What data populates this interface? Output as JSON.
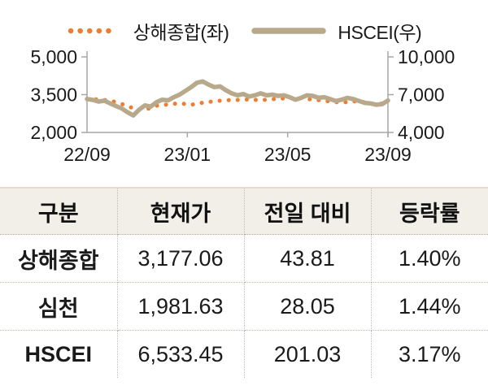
{
  "legend": [
    {
      "label": "상해종합(좌)",
      "marker": "dotted",
      "color": "#ED7D31"
    },
    {
      "label": "HSCEI(우)",
      "marker": "solid",
      "color": "#B9A98C"
    }
  ],
  "chart_data": {
    "type": "line",
    "title": "",
    "x_ticks": [
      "22/09",
      "23/01",
      "23/05",
      "23/09"
    ],
    "left_axis": {
      "label_side": "left",
      "ticks": [
        2000,
        3500,
        5000
      ],
      "tick_labels": [
        "2,000",
        "3,500",
        "5,000"
      ],
      "range": [
        2000,
        5000
      ]
    },
    "right_axis": {
      "label_side": "right",
      "ticks": [
        4000,
        7000,
        10000
      ],
      "tick_labels": [
        "4,000",
        "7,000",
        "10,000"
      ],
      "range": [
        4000,
        10000
      ]
    },
    "grid": false,
    "series": [
      {
        "name": "상해종합",
        "axis": "left",
        "style": "dotted",
        "color": "#ED7D31",
        "values": [
          3340,
          3310,
          3270,
          3130,
          2960,
          2890,
          3060,
          3110,
          3160,
          3100,
          3180,
          3240,
          3280,
          3290,
          3310,
          3280,
          3320,
          3350,
          3380,
          3330,
          3280,
          3230,
          3180,
          3240,
          3200,
          3120,
          3177
        ]
      },
      {
        "name": "HSCEI",
        "axis": "right",
        "style": "solid",
        "color": "#B9A98C",
        "values": [
          6650,
          6580,
          6450,
          6520,
          6300,
          6100,
          5900,
          5600,
          5350,
          5800,
          6150,
          6050,
          6400,
          6600,
          6550,
          6800,
          7000,
          7300,
          7600,
          7950,
          8050,
          7800,
          7600,
          7650,
          7350,
          7100,
          6950,
          7050,
          6850,
          6950,
          7100,
          6950,
          7000,
          6900,
          6950,
          6800,
          6600,
          6750,
          6950,
          6900,
          6750,
          6800,
          6650,
          6500,
          6600,
          6750,
          6650,
          6500,
          6350,
          6300,
          6200,
          6250,
          6533
        ]
      }
    ]
  },
  "table": {
    "columns": [
      "구분",
      "현재가",
      "전일 대비",
      "등락률"
    ],
    "rows": [
      [
        "상해종합",
        "3,177.06",
        "43.81",
        "1.40%"
      ],
      [
        "심천",
        "1,981.63",
        "28.05",
        "1.44%"
      ],
      [
        "HSCEI",
        "6,533.45",
        "201.03",
        "3.17%"
      ]
    ]
  },
  "colors": {
    "shanghai": "#ED7D31",
    "hscei": "#B9A98C",
    "axis": "#A6A6A6",
    "text": "#1a1a1a",
    "table_header_bg": "#f2efe8",
    "table_border_dotted": "#c4bcab",
    "table_top_border": "#e4dcc9"
  }
}
